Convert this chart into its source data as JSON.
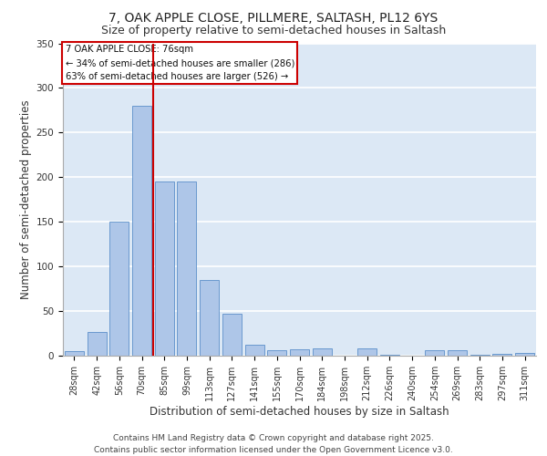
{
  "title_line1": "7, OAK APPLE CLOSE, PILLMERE, SALTASH, PL12 6YS",
  "title_line2": "Size of property relative to semi-detached houses in Saltash",
  "xlabel": "Distribution of semi-detached houses by size in Saltash",
  "ylabel": "Number of semi-detached properties",
  "categories": [
    "28sqm",
    "42sqm",
    "56sqm",
    "70sqm",
    "85sqm",
    "99sqm",
    "113sqm",
    "127sqm",
    "141sqm",
    "155sqm",
    "170sqm",
    "184sqm",
    "198sqm",
    "212sqm",
    "226sqm",
    "240sqm",
    "254sqm",
    "269sqm",
    "283sqm",
    "297sqm",
    "311sqm"
  ],
  "values": [
    5,
    27,
    150,
    280,
    195,
    195,
    85,
    47,
    12,
    6,
    7,
    8,
    0,
    8,
    1,
    0,
    6,
    6,
    1,
    2,
    3
  ],
  "bar_color": "#aec6e8",
  "bar_edge_color": "#5b8fc9",
  "vline_x_index": 3,
  "vline_color": "#cc0000",
  "annotation_title": "7 OAK APPLE CLOSE: 76sqm",
  "annotation_line1": "← 34% of semi-detached houses are smaller (286)",
  "annotation_line2": "63% of semi-detached houses are larger (526) →",
  "annotation_box_color": "#ffffff",
  "annotation_box_edge": "#cc0000",
  "ylim": [
    0,
    350
  ],
  "yticks": [
    0,
    50,
    100,
    150,
    200,
    250,
    300,
    350
  ],
  "footer_line1": "Contains HM Land Registry data © Crown copyright and database right 2025.",
  "footer_line2": "Contains public sector information licensed under the Open Government Licence v3.0.",
  "bg_color": "#dce8f5",
  "grid_color": "#ffffff",
  "title_fontsize": 10,
  "subtitle_fontsize": 9,
  "axis_label_fontsize": 8.5,
  "tick_fontsize": 7,
  "footer_fontsize": 6.5
}
